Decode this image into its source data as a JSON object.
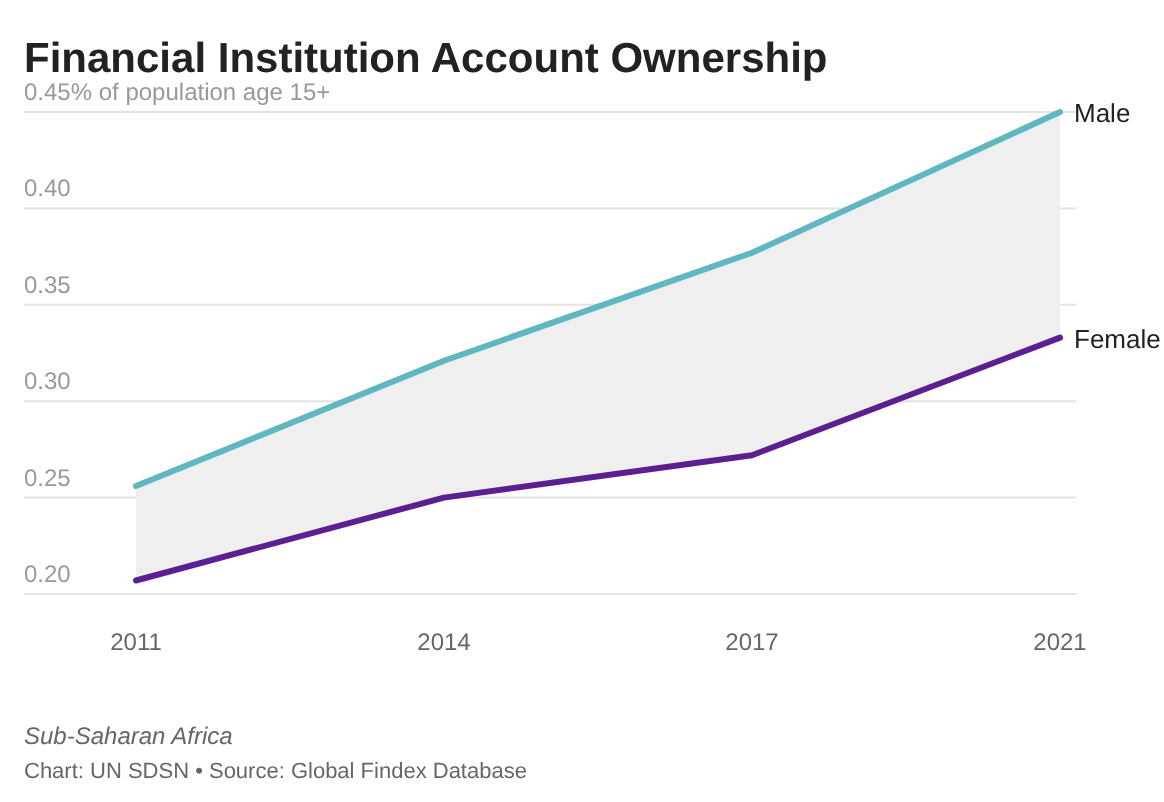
{
  "chart_data": {
    "type": "line",
    "title": "Financial Institution Account Ownership",
    "categories": [
      "2011",
      "2014",
      "2017",
      "2021"
    ],
    "series": [
      {
        "name": "Male",
        "color": "#5fb8c0",
        "values": [
          0.256,
          0.321,
          0.377,
          0.45
        ],
        "lower": [
          0.207,
          0.25,
          0.272,
          0.333
        ],
        "upper": [
          0.256,
          0.321,
          0.377,
          0.45
        ]
      },
      {
        "name": "Female",
        "color": "#5b1f91",
        "values": [
          0.207,
          0.25,
          0.272,
          0.333
        ]
      }
    ],
    "ylim": [
      0.2,
      0.45
    ],
    "yticks": [
      {
        "value": 0.2,
        "label": "0.20"
      },
      0.25,
      {
        "value": 0.3,
        "label": "0.30"
      },
      0.35,
      {
        "value": 0.4,
        "label": "0.40"
      },
      {
        "value": 0.45,
        "label": "0.45% of population age 15+"
      }
    ],
    "grid": "y",
    "marker": "none",
    "line_style": "solid",
    "annotations": [
      "Sub-Saharan Africa",
      "Chart: UN SDSN • Source: Global Findex Database"
    ]
  }
}
